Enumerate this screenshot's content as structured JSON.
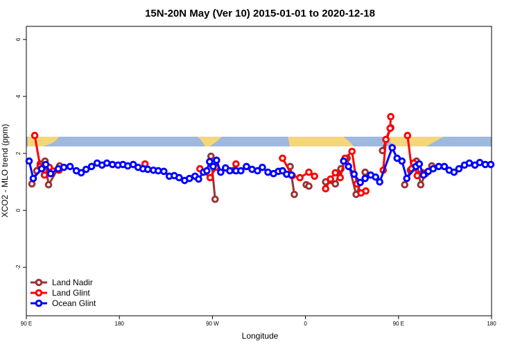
{
  "chart_data": {
    "type": "line",
    "title": "15N-20N May (Ver 10)   2015-01-01 to 2020-12-18",
    "x_label": "Longitude",
    "y_label": "XCO2 - MLO trend (ppm)",
    "xlim": [
      90,
      540
    ],
    "ylim": [
      -3.7,
      6.46
    ],
    "xticks": [
      {
        "value": 90,
        "label": "90 E"
      },
      180,
      {
        "value": 270,
        "label": "90 W"
      },
      {
        "value": 360,
        "label": "0"
      },
      {
        "value": 450,
        "label": "90 E"
      },
      {
        "value": 540,
        "label": "180"
      }
    ],
    "yticks": [
      -2,
      0,
      2,
      4,
      6
    ],
    "legend": "bottom-left",
    "series": [
      {
        "name": "Land Nadir",
        "color": "#993333",
        "x": [
          95.4,
          100.1,
          103.4,
          108.1,
          111.5,
          122.2,
          200,
          268.6,
          272.6,
          280,
          290.8,
          320,
          345.2,
          349.2,
          355,
          360.7,
          363.3,
          370,
          379.5,
          388.9,
          394.3,
          400.3,
          409.0,
          417.7,
          425,
          434.5,
          442.5,
          450,
          456.0,
          461.4,
          467.4,
          471.5,
          476.2,
          482.2
        ],
        "values": [
          0.93,
          1.39,
          1.63,
          1.73,
          0.9,
          1.56,
          null,
          1.9,
          0.39,
          null,
          1.41,
          null,
          1.54,
          0.56,
          null,
          0.9,
          0.85,
          null,
          1.0,
          0.93,
          1.46,
          1.83,
          0.56,
          1.34,
          null,
          2.1,
          2.9,
          null,
          0.9,
          1.41,
          1.73,
          0.9,
          1.29,
          1.56
        ]
      },
      {
        "name": "Land Glint",
        "color": "#ff0000",
        "x": [
          98.1,
          103.4,
          107.5,
          112.2,
          121.6,
          160,
          204.8,
          230,
          257.9,
          267.8,
          273.3,
          285,
          292.8,
          315,
          337.8,
          347.2,
          354.6,
          363.3,
          368.7,
          374,
          379.5,
          384.2,
          388.9,
          393.6,
          398.3,
          405.0,
          409.7,
          413.7,
          418.4,
          427,
          435.2,
          437.8,
          441.9,
          442.5,
          450,
          458.7,
          462.7,
          464.7,
          468.1,
          473.5
        ],
        "values": [
          2.63,
          1.54,
          1.24,
          1.51,
          1.41,
          null,
          1.63,
          null,
          1.46,
          1.15,
          1.51,
          null,
          1.63,
          null,
          1.83,
          1.22,
          1.15,
          1.34,
          1.2,
          null,
          0.76,
          1.1,
          1.32,
          1.15,
          1.83,
          2.07,
          0.93,
          0.61,
          0.68,
          null,
          1.41,
          2.49,
          2.88,
          3.29,
          null,
          2.63,
          1.46,
          1.66,
          1.22,
          1.32
        ]
      },
      {
        "name": "Ocean Glint",
        "color": "#0000ff",
        "x": [
          92.7,
          96.7,
          104.8,
          108.8,
          113.5,
          120.9,
          126.3,
          132.3,
          138.4,
          143.1,
          147.8,
          153.1,
          158.5,
          163.2,
          167.9,
          173.3,
          178.7,
          183.4,
          188.1,
          193.4,
          198.1,
          202.8,
          207.5,
          212.9,
          217.6,
          223.0,
          228.3,
          233.1,
          237.8,
          243.1,
          247.8,
          253.2,
          256.6,
          261.3,
          264.6,
          267.3,
          270.7,
          274.0,
          278.0,
          282.7,
          286.8,
          292.8,
          297.5,
          302.9,
          308.3,
          313.6,
          318.3,
          323.7,
          329.1,
          333.8,
          337.8,
          341.8,
          346.5,
          370,
          396.9,
          401.6,
          407.0,
          413.0,
          417.7,
          423.1,
          427.8,
          431.8,
          443.9,
          448.6,
          453.3,
          458.0,
          466.8,
          470.1,
          474.2,
          478.8,
          483.5,
          488.9,
          494.3,
          499.0,
          503.7,
          508.4,
          513.8,
          518.5,
          523.9,
          528.6,
          533.9,
          539.3
        ],
        "values": [
          1.73,
          1.12,
          1.46,
          1.61,
          1.29,
          1.46,
          1.51,
          1.54,
          1.39,
          1.32,
          1.44,
          1.54,
          1.66,
          1.59,
          1.66,
          1.61,
          1.59,
          1.61,
          1.56,
          1.61,
          1.51,
          1.46,
          1.44,
          1.41,
          1.39,
          1.37,
          1.2,
          1.22,
          1.15,
          1.05,
          1.12,
          1.2,
          1.1,
          1.34,
          1.39,
          1.71,
          1.54,
          1.76,
          1.34,
          1.49,
          1.39,
          1.39,
          1.39,
          1.54,
          1.44,
          1.39,
          1.51,
          1.34,
          1.29,
          1.37,
          1.39,
          1.27,
          1.24,
          null,
          1.73,
          1.54,
          1.27,
          0.98,
          1.12,
          1.24,
          1.17,
          1.0,
          2.2,
          1.83,
          1.73,
          1.12,
          1.54,
          1.63,
          1.24,
          1.37,
          1.46,
          1.54,
          1.54,
          1.41,
          1.34,
          1.46,
          1.59,
          1.66,
          1.59,
          1.68,
          1.61,
          1.61
        ]
      }
    ]
  }
}
